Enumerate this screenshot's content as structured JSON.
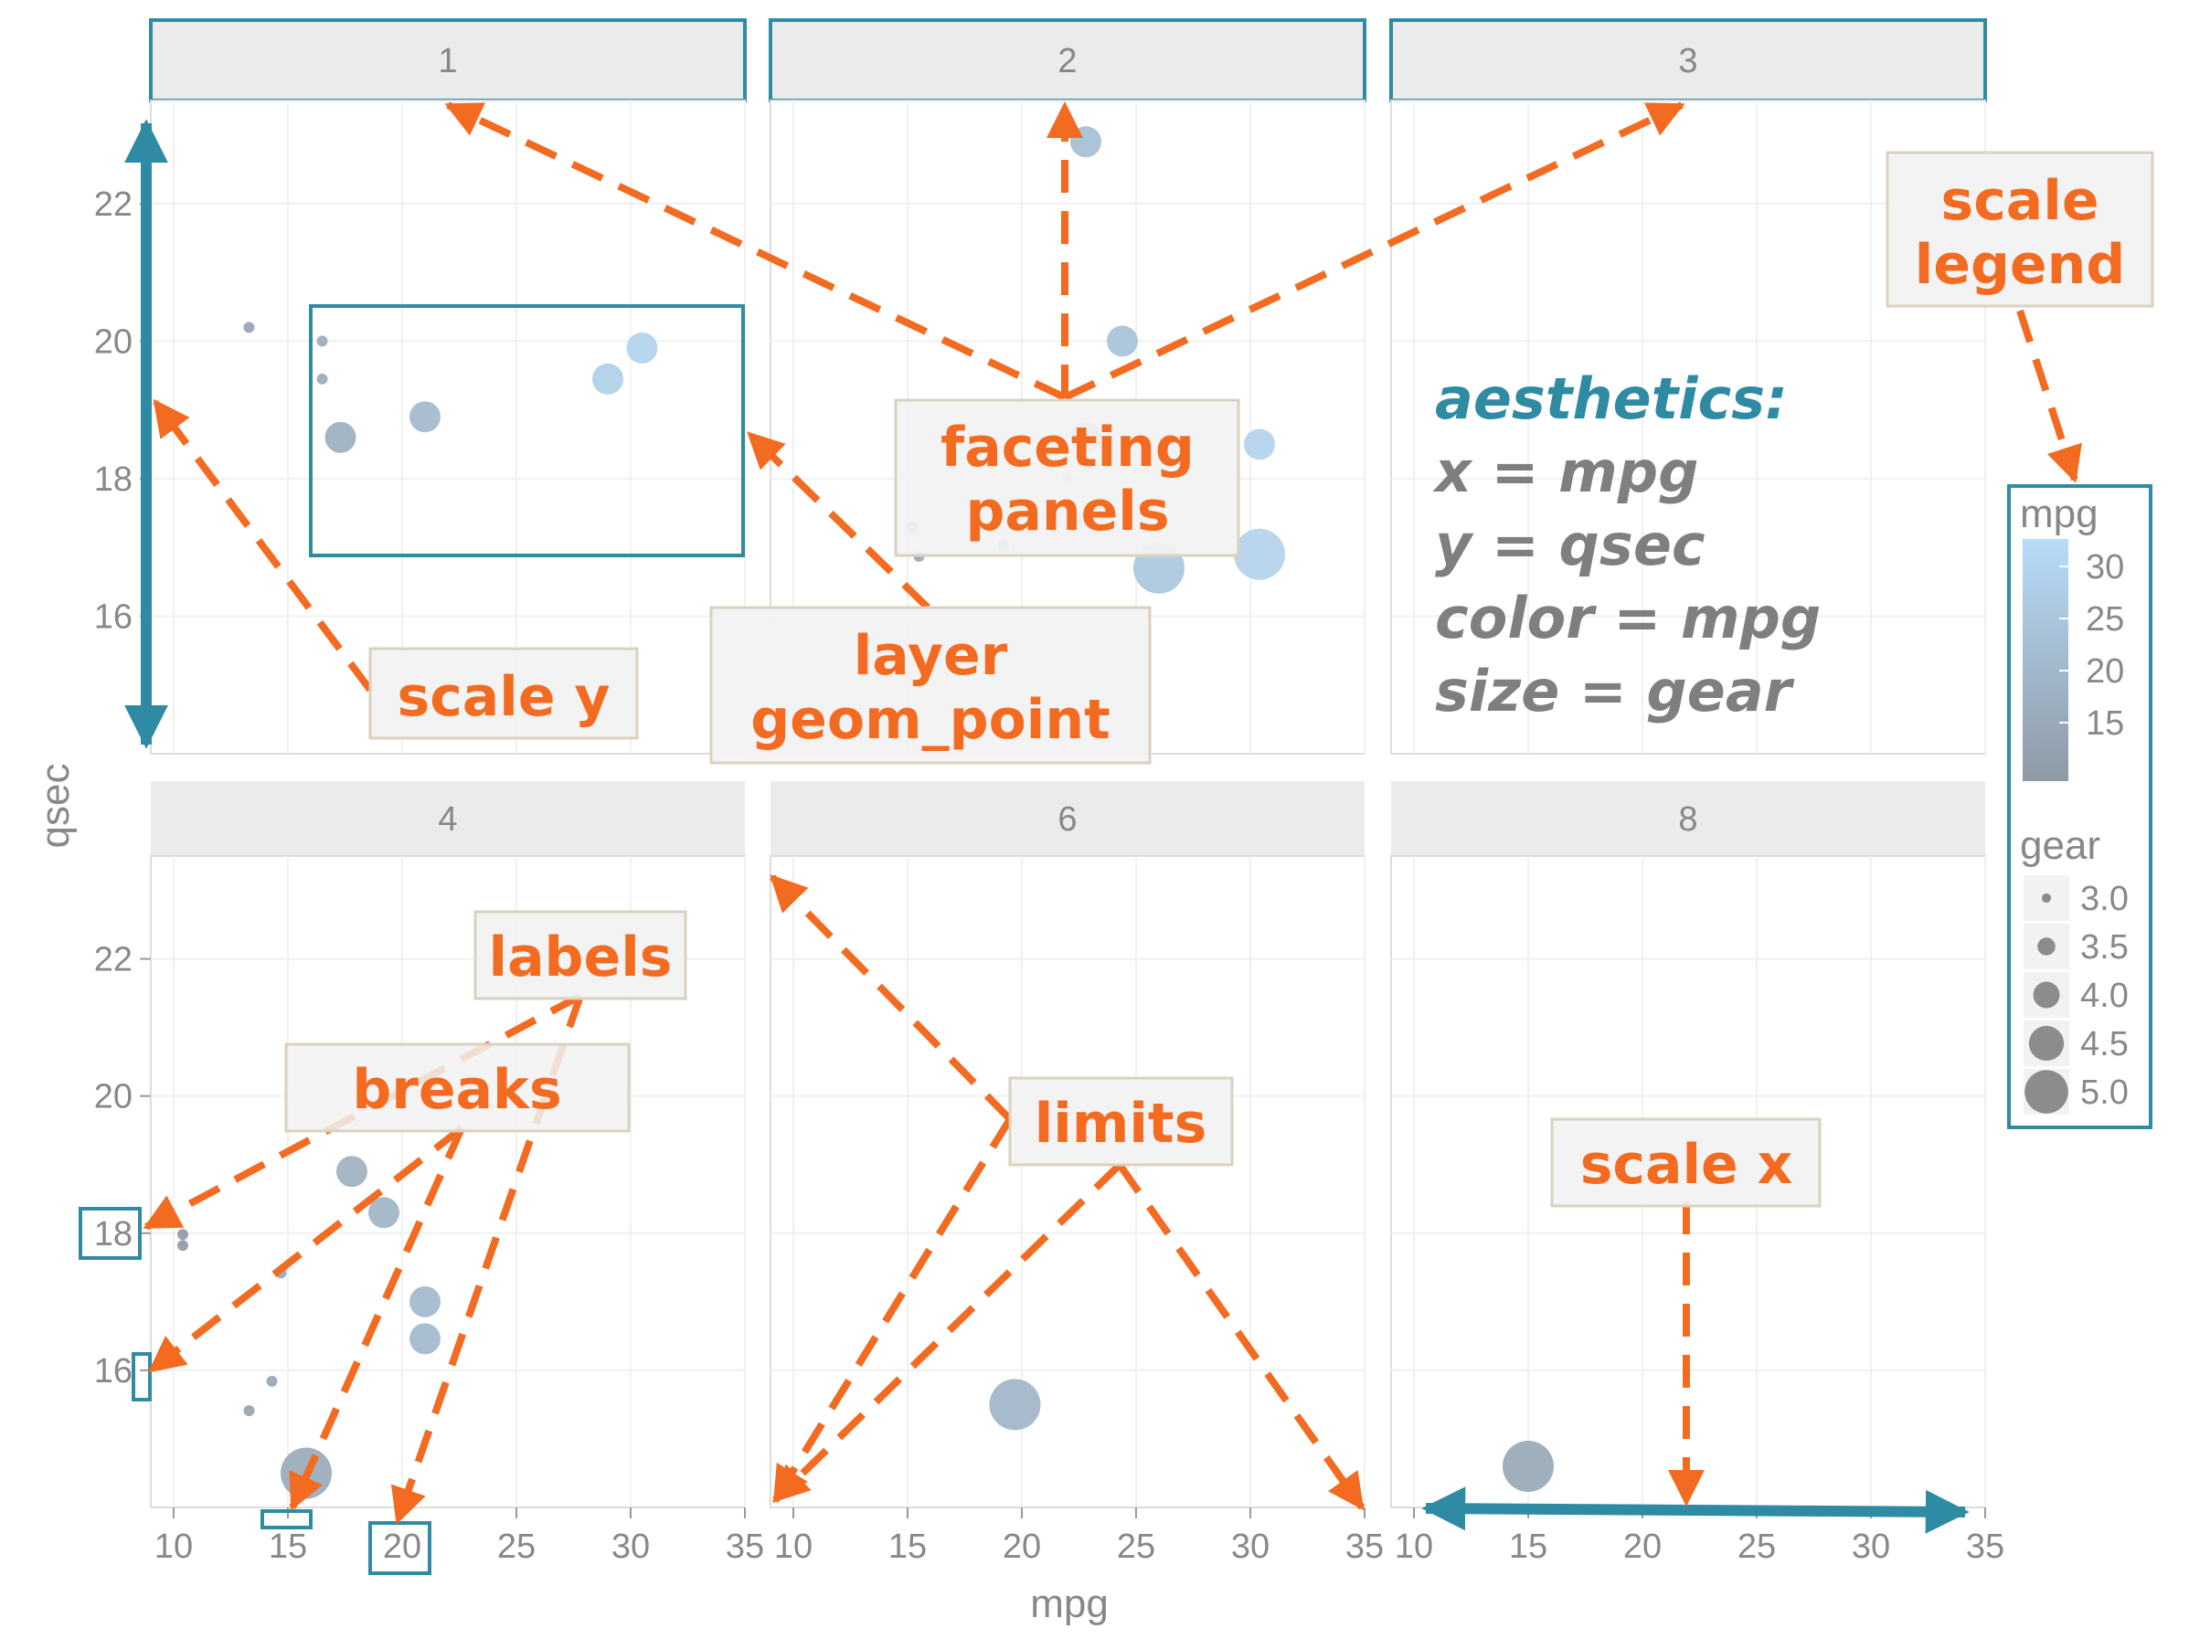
{
  "chart_data": {
    "type": "scatter",
    "facet_by": "cyl",
    "xlabel": "mpg",
    "ylabel": "qsec",
    "xlim": [
      9,
      35
    ],
    "ylim": [
      14,
      23.5
    ],
    "x_ticks": [
      10,
      15,
      20,
      25,
      30,
      35
    ],
    "y_ticks": [
      16,
      18,
      20,
      22
    ],
    "grid": true,
    "legend_position": "right",
    "color_scale": {
      "title": "mpg",
      "labels": [
        "30",
        "25",
        "20",
        "15"
      ],
      "low": "#8e99a5",
      "high": "#b7dcf9",
      "min": 10.4,
      "max": 33.9
    },
    "size_scale": {
      "title": "gear",
      "labels": [
        "3.0",
        "3.5",
        "4.0",
        "4.5",
        "5.0"
      ]
    },
    "panels": [
      {
        "label": "1",
        "points": []
      },
      {
        "label": "2",
        "points": [
          {
            "mpg": 22.8,
            "qsec": 22.9,
            "gear": 4
          },
          {
            "mpg": 24.4,
            "qsec": 20.0,
            "gear": 4
          },
          {
            "mpg": 22.8,
            "qsec": 18.6,
            "gear": 4
          },
          {
            "mpg": 30.4,
            "qsec": 18.5,
            "gear": 4
          },
          {
            "mpg": 26.0,
            "qsec": 16.7,
            "gear": 5
          },
          {
            "mpg": 30.4,
            "qsec": 16.9,
            "gear": 5
          },
          {
            "mpg": 15.2,
            "qsec": 17.3,
            "gear": 3
          },
          {
            "mpg": 15.5,
            "qsec": 16.87,
            "gear": 3
          },
          {
            "mpg": 19.2,
            "qsec": 17.05,
            "gear": 3
          },
          {
            "mpg": 19.2,
            "qsec": 17.0,
            "gear": 3
          },
          {
            "mpg": 22.0,
            "qsec": 18.0,
            "gear": 3
          },
          {
            "mpg": 22.5,
            "qsec": 17.4,
            "gear": 3
          },
          {
            "mpg": 23.3,
            "qsec": 17.6,
            "gear": 3
          }
        ]
      },
      {
        "label": "3",
        "points": []
      },
      {
        "label": "4",
        "points": [
          {
            "mpg": 17.8,
            "qsec": 18.9,
            "gear": 4
          },
          {
            "mpg": 19.2,
            "qsec": 18.3,
            "gear": 4
          },
          {
            "mpg": 21.0,
            "qsec": 17.0,
            "gear": 4
          },
          {
            "mpg": 21.0,
            "qsec": 16.46,
            "gear": 4
          },
          {
            "mpg": 15.8,
            "qsec": 14.5,
            "gear": 5
          },
          {
            "mpg": 10.4,
            "qsec": 17.98,
            "gear": 3
          },
          {
            "mpg": 10.4,
            "qsec": 17.82,
            "gear": 3
          },
          {
            "mpg": 14.7,
            "qsec": 17.42,
            "gear": 3
          },
          {
            "mpg": 14.3,
            "qsec": 15.84,
            "gear": 3
          },
          {
            "mpg": 13.3,
            "qsec": 15.41,
            "gear": 3
          }
        ]
      },
      {
        "label": "6",
        "points": [
          {
            "mpg": 19.7,
            "qsec": 15.5,
            "gear": 5
          }
        ]
      },
      {
        "label": "8",
        "points": [
          {
            "mpg": 15.0,
            "qsec": 14.6,
            "gear": 5
          }
        ]
      }
    ],
    "inset_points": [
      {
        "mpg": 13.3,
        "qsec": 20.2,
        "gear": 3
      },
      {
        "mpg": 16.5,
        "qsec": 20.0,
        "gear": 3
      },
      {
        "mpg": 16.5,
        "qsec": 19.45,
        "gear": 3
      },
      {
        "mpg": 17.3,
        "qsec": 18.6,
        "gear": 4
      },
      {
        "mpg": 21.0,
        "qsec": 18.9,
        "gear": 4
      },
      {
        "mpg": 29.0,
        "qsec": 19.45,
        "gear": 4
      },
      {
        "mpg": 30.5,
        "qsec": 19.9,
        "gear": 4
      }
    ]
  },
  "callouts": {
    "scale_legend_1": "scale",
    "scale_legend_2": "legend",
    "faceting_1": "faceting",
    "faceting_2": "panels",
    "layer_1": "layer",
    "layer_2": "geom_point",
    "scale_y": "scale y",
    "labels": "labels",
    "breaks": "breaks",
    "limits": "limits",
    "scale_x": "scale x"
  },
  "aesthetics": {
    "title": "aesthetics:",
    "lines": [
      "x = mpg",
      "y = qsec",
      "color = mpg",
      "size = gear"
    ]
  },
  "colors": {
    "accent_teal": "#2f8ba3",
    "callout_orange": "#f26b21",
    "strip_bg": "#ebebeb",
    "callout_bg": "#f2f2f2"
  }
}
